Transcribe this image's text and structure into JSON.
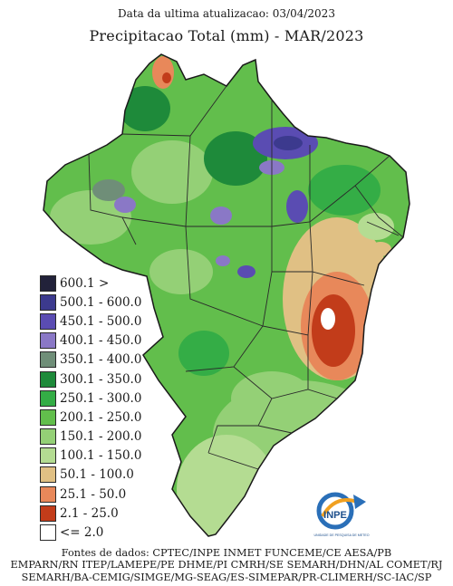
{
  "header": {
    "updated": "Data da ultima atualizacao: 03/04/2023",
    "title": "Precipitacao Total (mm) - MAR/2023"
  },
  "legend": [
    {
      "label": "600.1 >",
      "color": "#22223a"
    },
    {
      "label": "500.1 - 600.0",
      "color": "#3c3a8e"
    },
    {
      "label": "450.1 - 500.0",
      "color": "#5a4cb2"
    },
    {
      "label": "400.1 - 450.0",
      "color": "#8a78c6"
    },
    {
      "label": "350.1 - 400.0",
      "color": "#6f8e78"
    },
    {
      "label": "300.1 - 350.0",
      "color": "#1e8a3a"
    },
    {
      "label": "250.1 - 300.0",
      "color": "#34ad46"
    },
    {
      "label": "200.1 - 250.0",
      "color": "#62be4c"
    },
    {
      "label": "150.1 - 200.0",
      "color": "#94d076"
    },
    {
      "label": "100.1 - 150.0",
      "color": "#b4dc92"
    },
    {
      "label": "50.1 - 100.0",
      "color": "#e0c084"
    },
    {
      "label": "25.1 - 50.0",
      "color": "#e8885a"
    },
    {
      "label": "2.1 - 25.0",
      "color": "#c23c1a"
    },
    {
      "label": "<= 2.0",
      "color": "#ffffff"
    }
  ],
  "logo": {
    "name": "INPE",
    "subtitle": "UNIDADE DE PESQUISA DE METEO"
  },
  "sources": [
    "Fontes de dados: CPTEC/INPE INMET FUNCEME/CE AESA/PB",
    "EMPARN/RN ITEP/LAMEPE/PE DHME/PI CMRH/SE SEMARH/DHN/AL COMET/RJ",
    "SEMARH/BA-CEMIG/SIMGE/MG-SEAG/ES-SIMEPAR/PR-CLIMERH/SC-IAC/SP"
  ]
}
